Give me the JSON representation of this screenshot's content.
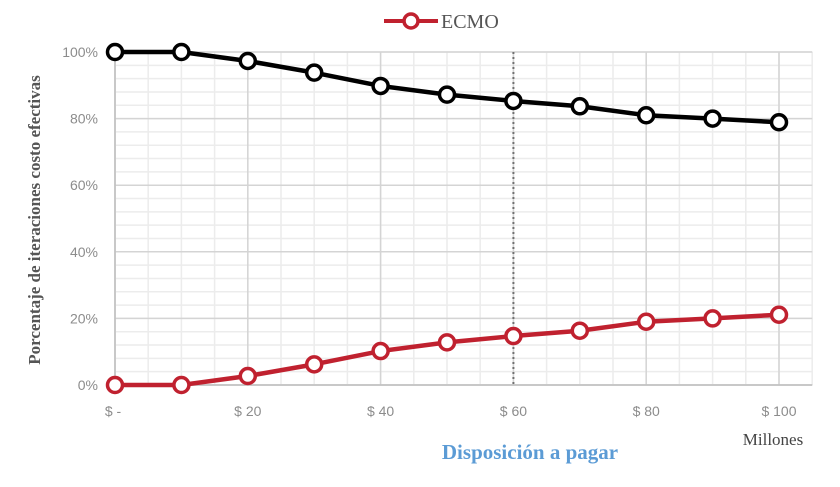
{
  "chart_data": {
    "type": "line",
    "title": "",
    "legend": {
      "position": "top",
      "entries": [
        "ECMO"
      ]
    },
    "xlabel": "Disposición a pagar",
    "x_unit_label": "Millones",
    "ylabel": "Porcentaje de iteraciones costo efectivas",
    "x": [
      0,
      10,
      20,
      30,
      40,
      50,
      60,
      70,
      80,
      90,
      100
    ],
    "x_tick_values": [
      0,
      20,
      40,
      60,
      80,
      100
    ],
    "x_tick_labels": [
      "$ -",
      "$ 20",
      "$ 40",
      "$ 60",
      "$ 80",
      "$ 100"
    ],
    "y_tick_values": [
      0,
      20,
      40,
      60,
      80,
      100
    ],
    "y_tick_labels": [
      "0%",
      "20%",
      "40%",
      "60%",
      "80%",
      "100%"
    ],
    "xlim": [
      0,
      105
    ],
    "ylim": [
      0,
      100
    ],
    "grid": {
      "major": true,
      "minor": true,
      "minor_x_step": 5,
      "minor_y_step": 4
    },
    "reference_line": {
      "x": 60,
      "style": "dotted",
      "color": "#707070"
    },
    "series": [
      {
        "name": "",
        "color": "#000000",
        "in_legend": false,
        "values": [
          100,
          100,
          97.3,
          93.8,
          89.8,
          87.2,
          85.3,
          83.7,
          81.0,
          80.0,
          78.9
        ]
      },
      {
        "name": "ECMO",
        "color": "#c0212f",
        "in_legend": true,
        "values": [
          0,
          0,
          2.7,
          6.2,
          10.2,
          12.8,
          14.7,
          16.3,
          19.0,
          20.0,
          21.1
        ]
      }
    ]
  }
}
